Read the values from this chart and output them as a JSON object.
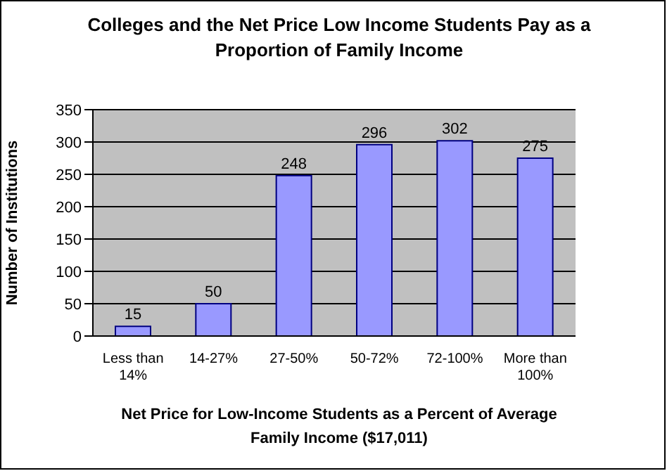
{
  "chart_data": {
    "type": "bar",
    "title": "Colleges and the Net Price Low Income Students Pay as a Proportion of Family Income",
    "xlabel": "Net Price for Low-Income Students as a Percent of Average Family Income ($17,011)",
    "ylabel": "Number of Institutions",
    "categories": [
      "Less than 14%",
      "14-27%",
      "27-50%",
      "50-72%",
      "72-100%",
      "More than 100%"
    ],
    "values": [
      15,
      50,
      248,
      296,
      302,
      275
    ],
    "color": "#9999ff",
    "ylim": [
      0,
      350
    ],
    "yticks": [
      0,
      50,
      100,
      150,
      200,
      250,
      300,
      350
    ],
    "grid": "y",
    "data_labels": true
  }
}
